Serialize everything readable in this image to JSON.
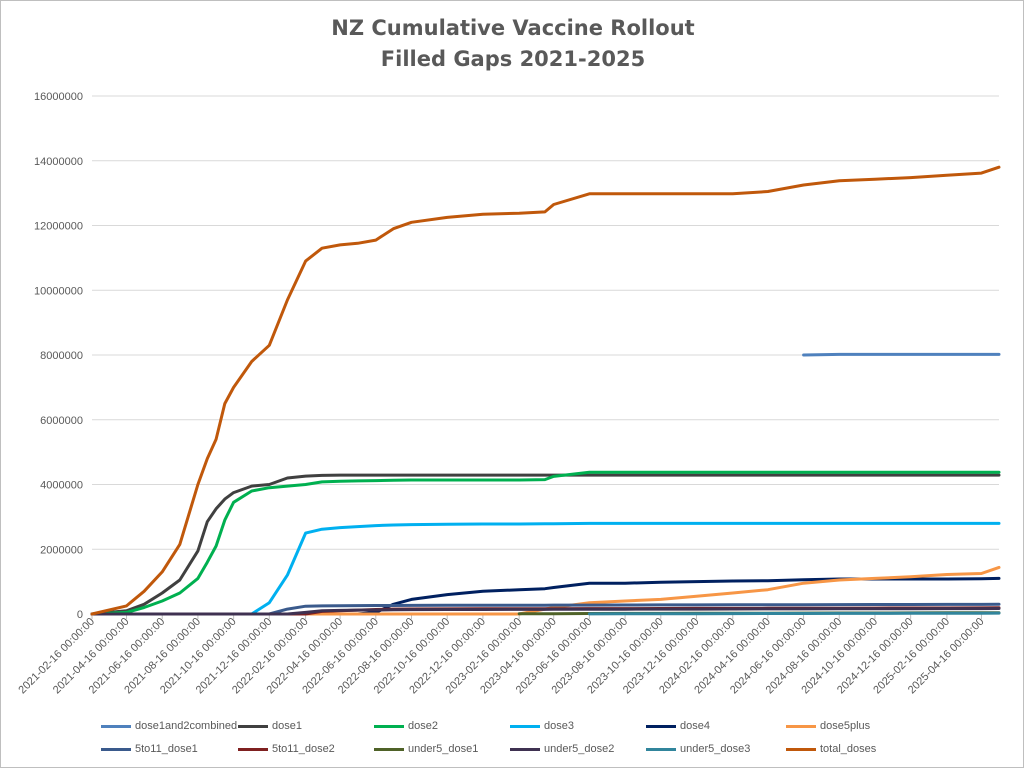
{
  "chart_data": {
    "type": "line",
    "title": "NZ Cumulative Vaccine Rollout",
    "subtitle": "Filled Gaps 2021-2025",
    "xlabel": "",
    "ylabel": "",
    "ylim": [
      0,
      16000000
    ],
    "y_ticks": [
      "0",
      "2000000",
      "4000000",
      "6000000",
      "8000000",
      "10000000",
      "12000000",
      "14000000",
      "16000000"
    ],
    "x_ticks": [
      "2021-02-16 00:00:00",
      "2021-04-16 00:00:00",
      "2021-06-16 00:00:00",
      "2021-08-16 00:00:00",
      "2021-10-16 00:00:00",
      "2021-12-16 00:00:00",
      "2022-02-16 00:00:00",
      "2022-04-16 00:00:00",
      "2022-06-16 00:00:00",
      "2022-08-16 00:00:00",
      "2022-10-16 00:00:00",
      "2022-12-16 00:00:00",
      "2023-02-16 00:00:00",
      "2023-04-16 00:00:00",
      "2023-06-16 00:00:00",
      "2023-08-16 00:00:00",
      "2023-10-16 00:00:00",
      "2023-12-16 00:00:00",
      "2024-02-16 00:00:00",
      "2024-04-16 00:00:00",
      "2024-06-16 00:00:00",
      "2024-08-16 00:00:00",
      "2024-10-16 00:00:00",
      "2024-12-16 00:00:00",
      "2025-02-16 00:00:00",
      "2025-04-16 00:00:00"
    ],
    "grid": true,
    "legend_position": "bottom",
    "x": [
      "2021-02-16",
      "2021-04-16",
      "2021-05-16",
      "2021-06-16",
      "2021-07-16",
      "2021-08-16",
      "2021-09-01",
      "2021-09-16",
      "2021-10-01",
      "2021-10-16",
      "2021-11-16",
      "2021-12-16",
      "2022-01-16",
      "2022-02-16",
      "2022-03-16",
      "2022-04-16",
      "2022-05-16",
      "2022-06-16",
      "2022-07-16",
      "2022-08-16",
      "2022-10-16",
      "2022-12-16",
      "2023-02-16",
      "2023-04-01",
      "2023-04-16",
      "2023-06-16",
      "2023-08-16",
      "2023-10-16",
      "2023-12-16",
      "2024-02-16",
      "2024-04-16",
      "2024-06-16",
      "2024-08-16",
      "2024-10-16",
      "2024-12-16",
      "2025-02-16",
      "2025-04-16",
      "2025-05-16"
    ],
    "series": [
      {
        "name": "dose1and2combined",
        "color": "#4f81bd",
        "values": [
          null,
          null,
          null,
          null,
          null,
          null,
          null,
          null,
          null,
          null,
          null,
          null,
          null,
          null,
          null,
          null,
          null,
          null,
          null,
          null,
          null,
          null,
          null,
          null,
          null,
          null,
          null,
          null,
          null,
          null,
          null,
          8000000,
          8020000,
          8020000,
          8020000,
          8020000,
          8020000,
          8020000
        ]
      },
      {
        "name": "dose1",
        "color": "#404040",
        "values": [
          0,
          100000,
          300000,
          650000,
          1050000,
          1950000,
          2850000,
          3250000,
          3550000,
          3750000,
          3950000,
          4000000,
          4200000,
          4260000,
          4280000,
          4290000,
          4290000,
          4290000,
          4290000,
          4290000,
          4290000,
          4290000,
          4290000,
          4290000,
          4290000,
          4290000,
          4290000,
          4290000,
          4290000,
          4290000,
          4290000,
          4290000,
          4290000,
          4290000,
          4290000,
          4290000,
          4290000,
          4290000
        ]
      },
      {
        "name": "dose2",
        "color": "#00b050",
        "values": [
          0,
          50000,
          200000,
          400000,
          650000,
          1100000,
          1600000,
          2100000,
          2900000,
          3450000,
          3800000,
          3900000,
          3950000,
          4000000,
          4080000,
          4100000,
          4110000,
          4120000,
          4130000,
          4140000,
          4140000,
          4140000,
          4140000,
          4150000,
          4250000,
          4380000,
          4380000,
          4380000,
          4380000,
          4380000,
          4380000,
          4380000,
          4380000,
          4380000,
          4380000,
          4380000,
          4380000,
          4380000
        ]
      },
      {
        "name": "dose3",
        "color": "#00b0f0",
        "values": [
          0,
          0,
          0,
          0,
          0,
          0,
          0,
          0,
          0,
          0,
          0,
          350000,
          1200000,
          2500000,
          2620000,
          2670000,
          2700000,
          2730000,
          2750000,
          2760000,
          2770000,
          2780000,
          2780000,
          2790000,
          2790000,
          2800000,
          2800000,
          2800000,
          2800000,
          2800000,
          2800000,
          2800000,
          2800000,
          2800000,
          2800000,
          2800000,
          2800000,
          2800000
        ]
      },
      {
        "name": "dose4",
        "color": "#002060",
        "values": [
          0,
          0,
          0,
          0,
          0,
          0,
          0,
          0,
          0,
          0,
          0,
          0,
          0,
          0,
          0,
          0,
          0,
          50000,
          300000,
          450000,
          600000,
          700000,
          750000,
          780000,
          820000,
          950000,
          950000,
          980000,
          1000000,
          1020000,
          1030000,
          1060000,
          1080000,
          1080000,
          1080000,
          1080000,
          1090000,
          1100000
        ]
      },
      {
        "name": "dose5plus",
        "color": "#f79646",
        "values": [
          0,
          0,
          0,
          0,
          0,
          0,
          0,
          0,
          0,
          0,
          0,
          0,
          0,
          0,
          0,
          0,
          0,
          0,
          0,
          0,
          0,
          0,
          0,
          150000,
          200000,
          350000,
          400000,
          450000,
          550000,
          650000,
          750000,
          950000,
          1050000,
          1100000,
          1150000,
          1220000,
          1250000,
          1440000
        ]
      },
      {
        "name": "5to11_dose1",
        "color": "#3a5a8c",
        "values": [
          0,
          0,
          0,
          0,
          0,
          0,
          0,
          0,
          0,
          0,
          0,
          0,
          150000,
          240000,
          250000,
          255000,
          260000,
          262000,
          264000,
          266000,
          268000,
          270000,
          272000,
          273000,
          274000,
          276000,
          278000,
          280000,
          282000,
          284000,
          286000,
          288000,
          290000,
          292000,
          294000,
          296000,
          298000,
          300000
        ]
      },
      {
        "name": "5to11_dose2",
        "color": "#7f2020",
        "values": [
          0,
          0,
          0,
          0,
          0,
          0,
          0,
          0,
          0,
          0,
          0,
          0,
          0,
          0,
          80000,
          100000,
          120000,
          140000,
          150000,
          155000,
          158000,
          160000,
          162000,
          163000,
          164000,
          166000,
          168000,
          170000,
          172000,
          174000,
          176000,
          178000,
          180000,
          182000,
          184000,
          186000,
          188000,
          190000
        ]
      },
      {
        "name": "under5_dose1",
        "color": "#4f6228",
        "values": [
          null,
          null,
          null,
          null,
          null,
          null,
          null,
          null,
          null,
          null,
          null,
          null,
          null,
          null,
          null,
          null,
          null,
          null,
          null,
          null,
          null,
          null,
          5000,
          8000,
          10000,
          14000,
          17000,
          20000,
          22000,
          24000,
          26000,
          28000,
          30000,
          32000,
          34000,
          36000,
          38000,
          40000
        ]
      },
      {
        "name": "under5_dose2",
        "color": "#3f3151",
        "values": [
          0,
          0,
          0,
          0,
          0,
          0,
          0,
          0,
          0,
          0,
          0,
          0,
          0,
          50000,
          100000,
          110000,
          120000,
          125000,
          130000,
          135000,
          138000,
          140000,
          142000,
          143000,
          144000,
          146000,
          148000,
          150000,
          152000,
          154000,
          156000,
          158000,
          160000,
          162000,
          164000,
          166000,
          168000,
          170000
        ]
      },
      {
        "name": "under5_dose3",
        "color": "#31859c",
        "values": [
          null,
          null,
          null,
          null,
          null,
          null,
          null,
          null,
          null,
          null,
          null,
          null,
          null,
          null,
          null,
          null,
          null,
          null,
          null,
          null,
          null,
          null,
          null,
          null,
          null,
          4000,
          6000,
          8000,
          10000,
          12000,
          14000,
          16000,
          18000,
          20000,
          22000,
          24000,
          26000,
          28000
        ]
      },
      {
        "name": "total_doses",
        "color": "#c0580b",
        "values": [
          0,
          250000,
          700000,
          1300000,
          2150000,
          4000000,
          4800000,
          5400000,
          6500000,
          7000000,
          7800000,
          8300000,
          9700000,
          10900000,
          11300000,
          11400000,
          11450000,
          11550000,
          11900000,
          12100000,
          12250000,
          12350000,
          12380000,
          12420000,
          12650000,
          12980000,
          12980000,
          12980000,
          12980000,
          12980000,
          13050000,
          13250000,
          13380000,
          13430000,
          13480000,
          13550000,
          13620000,
          13800000
        ]
      }
    ]
  }
}
